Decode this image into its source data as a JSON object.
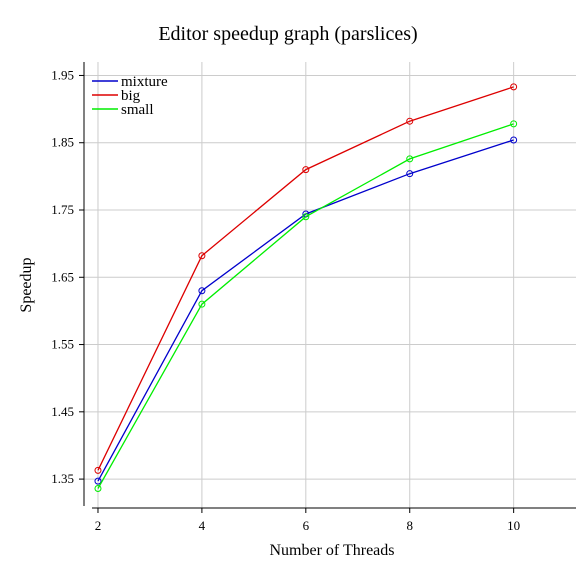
{
  "chart_data": {
    "type": "line",
    "title": "Editor speedup graph (parslices)",
    "xlabel": "Number of Threads",
    "ylabel": "Speedup",
    "x": [
      2,
      4,
      6,
      8,
      10
    ],
    "xticks": [
      "2",
      "4",
      "6",
      "8",
      "10"
    ],
    "yticks": [
      "1.35",
      "1.45",
      "1.55",
      "1.65",
      "1.75",
      "1.85",
      "1.95"
    ],
    "xlim": [
      1.5,
      11.2
    ],
    "ylim": [
      1.31,
      1.97
    ],
    "grid": true,
    "legend_position": "top-left",
    "series": [
      {
        "name": "mixture",
        "color": "#0000cc",
        "values": [
          1.347,
          1.63,
          1.744,
          1.804,
          1.854
        ]
      },
      {
        "name": "big",
        "color": "#dd0000",
        "values": [
          1.363,
          1.682,
          1.81,
          1.882,
          1.933
        ]
      },
      {
        "name": "small",
        "color": "#00ee00",
        "values": [
          1.336,
          1.61,
          1.74,
          1.826,
          1.878
        ]
      }
    ]
  }
}
